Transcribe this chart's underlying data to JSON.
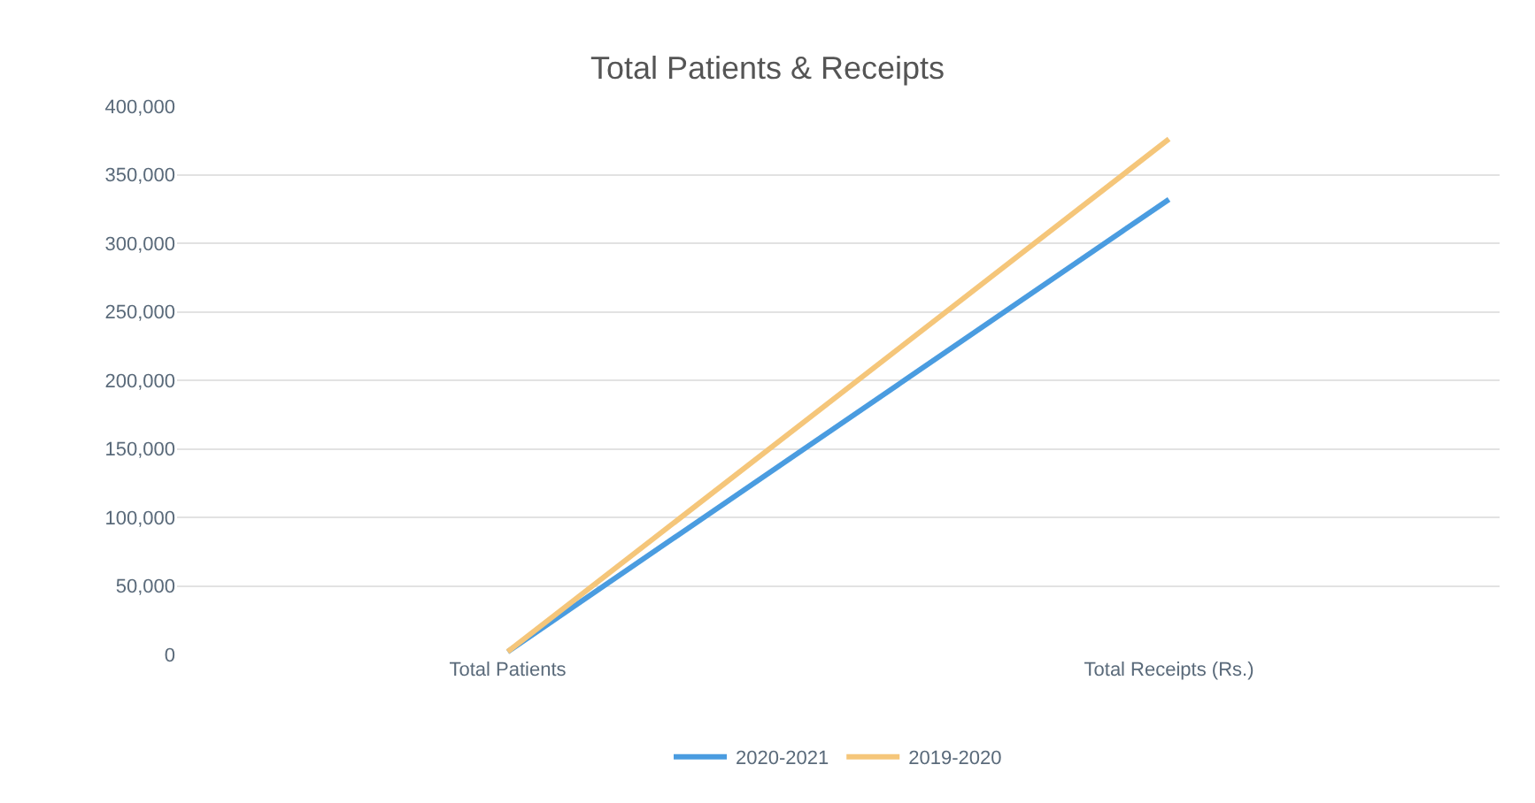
{
  "chart_data": {
    "type": "line",
    "title": "Total Patients & Receipts",
    "categories": [
      "Total Patients",
      "Total Receipts (Rs.)"
    ],
    "series": [
      {
        "name": "2020-2021",
        "color": "#4a9ce0",
        "values": [
          2000,
          332000
        ]
      },
      {
        "name": "2019-2020",
        "color": "#f5c67a",
        "values": [
          2000,
          376000
        ]
      }
    ],
    "ylim": [
      0,
      400000
    ],
    "yticks": [
      {
        "value": 0,
        "label": "0"
      },
      {
        "value": 50000,
        "label": "50,000"
      },
      {
        "value": 100000,
        "label": "100,000"
      },
      {
        "value": 150000,
        "label": "150,000"
      },
      {
        "value": 200000,
        "label": "200,000"
      },
      {
        "value": 250000,
        "label": "250,000"
      },
      {
        "value": 300000,
        "label": "300,000"
      },
      {
        "value": 350000,
        "label": "350,000"
      },
      {
        "value": 400000,
        "label": "400,000"
      }
    ],
    "grid": "y",
    "legend": "bottom",
    "marker": "none",
    "line_style": "solid"
  }
}
